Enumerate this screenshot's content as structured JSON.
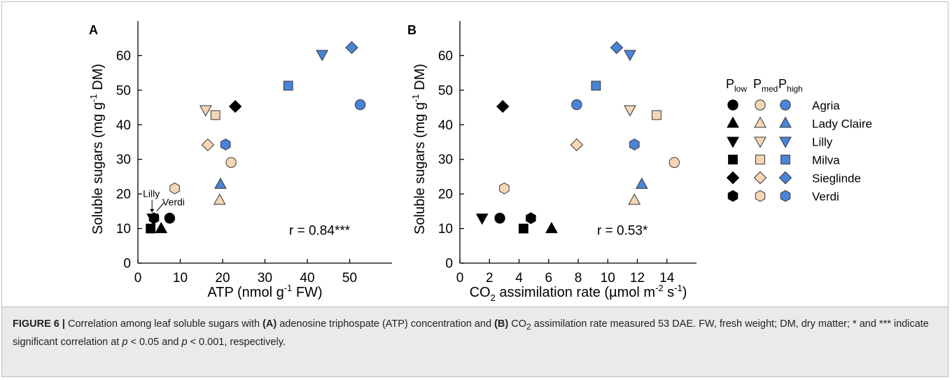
{
  "colors": {
    "p_low": "#000000",
    "p_med": "#f6d7b5",
    "p_high": "#4a84d8",
    "outline": "#333333"
  },
  "legend": {
    "header": [
      {
        "main": "P",
        "sub": "low"
      },
      {
        "main": "P",
        "sub": "med"
      },
      {
        "main": "P",
        "sub": "high"
      }
    ],
    "rows": [
      {
        "label": "Agria",
        "marker": "circle"
      },
      {
        "label": "Lady Claire",
        "marker": "triangle-up"
      },
      {
        "label": "Lilly",
        "marker": "triangle-down"
      },
      {
        "label": "Milva",
        "marker": "square"
      },
      {
        "label": "Sieglinde",
        "marker": "diamond"
      },
      {
        "label": "Verdi",
        "marker": "hexagon"
      }
    ]
  },
  "caption": {
    "prefix": "FIGURE 6 |",
    "part1": " Correlation among leaf soluble sugars with ",
    "a_bold": "(A)",
    "part2": " adenosine triphospate (ATP) concentration and ",
    "b_bold": "(B)",
    "part3": " CO",
    "part3_sub": "2",
    "part4": " assimilation rate measured 53 DAE. FW, fresh weight; DM, dry matter; * and *** indicate significant correlation at ",
    "p1": "p",
    "part5": " < 0.05 and ",
    "p2": "p",
    "part6": " < 0.001, respectively."
  },
  "chart_data": [
    {
      "type": "scatter",
      "panel_label": "A",
      "xlabel": {
        "pre": "ATP (nmol g",
        "sup": "-1",
        "post": " FW)"
      },
      "ylabel": {
        "pre": "Soluble sugars (mg g",
        "sup": "-1",
        "post": " DM)"
      },
      "xlim": [
        0,
        60
      ],
      "ylim": [
        0,
        70
      ],
      "xticks": [
        0,
        10,
        20,
        30,
        40,
        50
      ],
      "yticks": [
        0,
        10,
        20,
        30,
        40,
        50,
        60
      ],
      "annotation": "r = 0.84***",
      "point_labels": [
        {
          "text": "Lilly",
          "x": 3.5,
          "y": 13
        },
        {
          "text": "Verdi",
          "x": 3.8,
          "y": 13
        }
      ],
      "points": [
        {
          "cultivar": "Agria",
          "P": "low",
          "x": 7.5,
          "y": 13
        },
        {
          "cultivar": "Lady Claire",
          "P": "low",
          "x": 5.5,
          "y": 10
        },
        {
          "cultivar": "Lilly",
          "P": "low",
          "x": 3.5,
          "y": 13
        },
        {
          "cultivar": "Milva",
          "P": "low",
          "x": 3.0,
          "y": 10
        },
        {
          "cultivar": "Sieglinde",
          "P": "low",
          "x": 23.0,
          "y": 45.3
        },
        {
          "cultivar": "Verdi",
          "P": "low",
          "x": 3.8,
          "y": 13
        },
        {
          "cultivar": "Agria",
          "P": "med",
          "x": 22.0,
          "y": 29.1
        },
        {
          "cultivar": "Lady Claire",
          "P": "med",
          "x": 19.3,
          "y": 18.2
        },
        {
          "cultivar": "Lilly",
          "P": "med",
          "x": 16.0,
          "y": 44.3
        },
        {
          "cultivar": "Milva",
          "P": "med",
          "x": 18.3,
          "y": 42.8
        },
        {
          "cultivar": "Sieglinde",
          "P": "med",
          "x": 16.5,
          "y": 34.2
        },
        {
          "cultivar": "Verdi",
          "P": "med",
          "x": 8.7,
          "y": 21.6
        },
        {
          "cultivar": "Agria",
          "P": "high",
          "x": 52.5,
          "y": 45.8
        },
        {
          "cultivar": "Lady Claire",
          "P": "high",
          "x": 19.5,
          "y": 22.8
        },
        {
          "cultivar": "Lilly",
          "P": "high",
          "x": 43.5,
          "y": 60.3
        },
        {
          "cultivar": "Milva",
          "P": "high",
          "x": 35.5,
          "y": 51.3
        },
        {
          "cultivar": "Sieglinde",
          "P": "high",
          "x": 50.5,
          "y": 62.3
        },
        {
          "cultivar": "Verdi",
          "P": "high",
          "x": 20.7,
          "y": 34.3
        }
      ]
    },
    {
      "type": "scatter",
      "panel_label": "B",
      "xlabel": {
        "pre": "CO",
        "sub": "2",
        "mid": " assimilation rate (µmol m",
        "sup": "-2",
        "mid2": " s",
        "sup2": "-1",
        "post": ")"
      },
      "ylabel": {
        "pre": "Soluble sugars (mg g",
        "sup": "-1",
        "post": " DM)"
      },
      "xlim": [
        0,
        16
      ],
      "ylim": [
        0,
        70
      ],
      "xticks": [
        0,
        2,
        4,
        6,
        8,
        10,
        12,
        14
      ],
      "yticks": [
        0,
        10,
        20,
        30,
        40,
        50,
        60
      ],
      "annotation": "r = 0.53*",
      "points": [
        {
          "cultivar": "Agria",
          "P": "low",
          "x": 2.7,
          "y": 13
        },
        {
          "cultivar": "Lady Claire",
          "P": "low",
          "x": 6.2,
          "y": 10
        },
        {
          "cultivar": "Lilly",
          "P": "low",
          "x": 1.5,
          "y": 13
        },
        {
          "cultivar": "Milva",
          "P": "low",
          "x": 4.3,
          "y": 10
        },
        {
          "cultivar": "Sieglinde",
          "P": "low",
          "x": 2.9,
          "y": 45.3
        },
        {
          "cultivar": "Verdi",
          "P": "low",
          "x": 4.8,
          "y": 13
        },
        {
          "cultivar": "Agria",
          "P": "med",
          "x": 14.5,
          "y": 29.1
        },
        {
          "cultivar": "Lady Claire",
          "P": "med",
          "x": 11.8,
          "y": 18.2
        },
        {
          "cultivar": "Lilly",
          "P": "med",
          "x": 11.5,
          "y": 44.3
        },
        {
          "cultivar": "Milva",
          "P": "med",
          "x": 13.3,
          "y": 42.8
        },
        {
          "cultivar": "Sieglinde",
          "P": "med",
          "x": 7.9,
          "y": 34.2
        },
        {
          "cultivar": "Verdi",
          "P": "med",
          "x": 3.0,
          "y": 21.6
        },
        {
          "cultivar": "Agria",
          "P": "high",
          "x": 7.9,
          "y": 45.8
        },
        {
          "cultivar": "Lady Claire",
          "P": "high",
          "x": 12.3,
          "y": 22.8
        },
        {
          "cultivar": "Lilly",
          "P": "high",
          "x": 11.5,
          "y": 60.3
        },
        {
          "cultivar": "Milva",
          "P": "high",
          "x": 9.2,
          "y": 51.3
        },
        {
          "cultivar": "Sieglinde",
          "P": "high",
          "x": 10.6,
          "y": 62.3
        },
        {
          "cultivar": "Verdi",
          "P": "high",
          "x": 11.8,
          "y": 34.3
        }
      ]
    }
  ]
}
